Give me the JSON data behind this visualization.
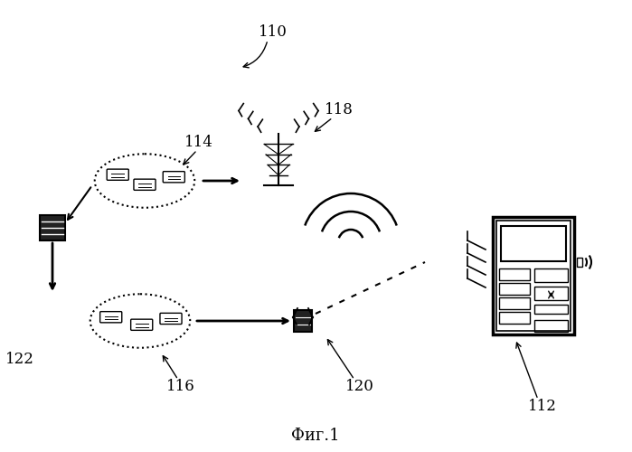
{
  "title": "Фиг.1",
  "label_110": "110",
  "label_112": "112",
  "label_114": "114",
  "label_116": "116",
  "label_118": "118",
  "label_120": "120",
  "label_122": "122",
  "bg_color": "#ffffff",
  "line_color": "#000000",
  "fig_width": 6.99,
  "fig_height": 5.0
}
